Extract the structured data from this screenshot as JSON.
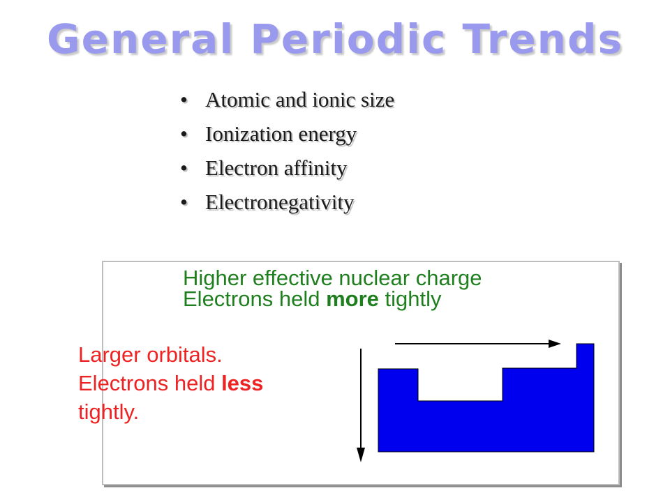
{
  "title": "General Periodic Trends",
  "bullets": [
    "Atomic and ionic size",
    "Ionization energy",
    "Electron affinity",
    "Electronegativity"
  ],
  "bullet_glyph": "•",
  "green_note": {
    "line1": "Higher effective nuclear charge",
    "line2_pre": "Electrons held ",
    "line2_bold": "more",
    "line2_post": " tightly"
  },
  "red_note": {
    "line1": "Larger orbitals.",
    "line2_pre": "Electrons held ",
    "line2_bold": "less",
    "line3": "tightly."
  },
  "colors": {
    "title": "#9999ee",
    "green_text": "#1f7f1f",
    "red_text": "#ee2222",
    "block_fill": "#0000ee"
  },
  "diagram": {
    "arrow_right": "arrow-right-icon",
    "arrow_down": "arrow-down-icon",
    "steps": [
      "high",
      "low",
      "higher",
      "highest"
    ]
  }
}
